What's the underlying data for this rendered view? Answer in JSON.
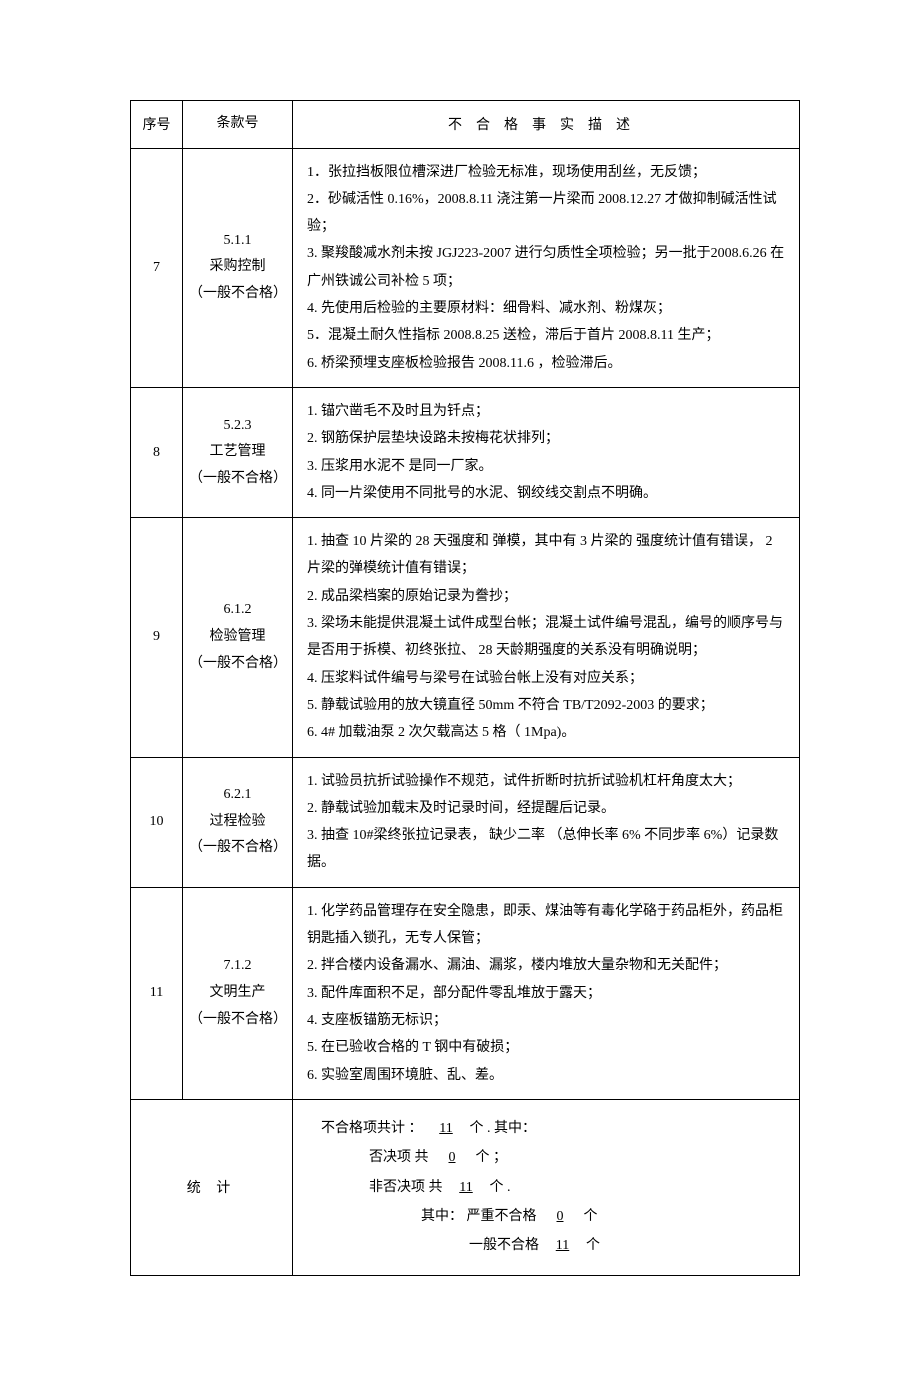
{
  "headers": {
    "seq": "序号",
    "clause": "条款号",
    "desc": "不合格事实描述"
  },
  "rows": [
    {
      "seq": "7",
      "clause": "5.1.1\n采购控制\n（一般不合格）",
      "desc": "1．张拉挡板限位槽深进厂检验无标准，现场使用刮丝，无反馈；\n2．砂碱活性   0.16%，2008.8.11   浇注第一片梁而    2008.12.27   才做抑制碱活性试验；\n3. 聚羧酸减水剂未按    JGJ223-2007   进行匀质性全项检验；另一批于2008.6.26   在  广州铁诚公司补检    5 项；\n4. 先使用后检验的主要原材料：细骨料、减水剂、粉煤灰；\n5．混凝土耐久性指标    2008.8.25   送检，滞后于首片   2008.8.11   生产；\n6. 桥梁预埋支座板检验报告      2008.11.6  ，检验滞后。"
    },
    {
      "seq": "8",
      "clause": "5.2.3\n工艺管理\n（一般不合格）",
      "desc": "1. 锚穴凿毛不及时且为钎点；\n2. 钢筋保护层垫块设路未按梅花状排列；\n3. 压浆用水泥不    是同一厂家。\n4.    同一片梁使用不同批号的水泥、钢绞线交割点不明确。"
    },
    {
      "seq": "9",
      "clause": "6.1.2\n检验管理\n（一般不合格）",
      "desc": "1. 抽查  10 片梁的   28 天强度和    弹模，其中有    3 片梁的    强度统计值有错误，   2 片梁的弹模统计值有错误；\n2. 成品梁档案的原始记录为誊抄；\n3. 梁场未能提供混凝土试件成型台帐；混凝土试件编号混乱，编号的顺序号与是否用于拆模、初终张拉、       28 天龄期强度的关系没有明确说明；\n4. 压浆料试件编号与梁号在试验台帐上没有对应关系；\n5. 静载试验用的放大镜直径      50mm  不符合  TB/T2092-2003  的要求；\n6. 4#  加载油泵   2 次欠载高达   5 格（ 1Mpa)。"
    },
    {
      "seq": "10",
      "clause": "6.2.1\n过程检验\n（一般不合格）",
      "desc": "1. 试验员抗折试验操作不规范，试件折断时抗折试验机杠杆角度太大；\n2. 静载试验加载末及时记录时间，经提醒后记录。\n3. 抽查 10#梁终张拉记录表，    缺少二率  （总伸长率   6%   不同步率  6%）记录数据。"
    },
    {
      "seq": "11",
      "clause": "7.1.2\n文明生产\n（一般不合格）",
      "desc": "1.   化学药品管理存在安全隐患，即汞、煤油等有毒化学硌于药品柜外，药品柜钥匙插入锁孔，无专人保管；\n2. 拌合楼内设备漏水、漏油、漏浆，楼内堆放大量杂物和无关配件；\n3. 配件库面积不足，部分配件零乱堆放于露天；\n4. 支座板锚筋无标识；\n5. 在已验收合格的   T 钢中有破损；\n6. 实验室周围环境脏、乱、差。"
    }
  ],
  "summary": {
    "label": "统 计",
    "line1_pre": "不合格项共计  ：",
    "line1_val": "11",
    "line1_post": "个  .   其中：",
    "line2_pre": "否决项   共",
    "line2_val": "0",
    "line2_post": "个 ；",
    "line3_pre": "非否决项    共",
    "line3_val": "11",
    "line3_post": "个 .",
    "line4_pre": "其中：  严重不合格",
    "line4_val": "0",
    "line4_post": "个",
    "line5_pre": "一般不合格",
    "line5_val": "11",
    "line5_post": "个"
  }
}
